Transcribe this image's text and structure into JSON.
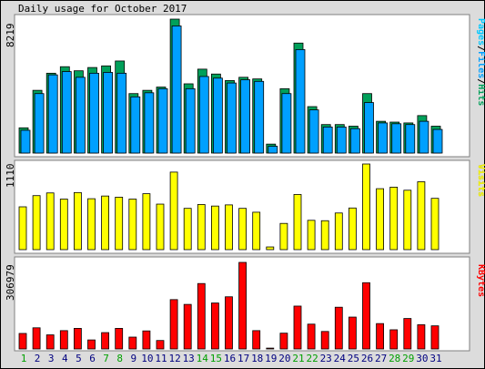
{
  "title": "Daily usage for October 2017",
  "colors": {
    "hits": "#00a05a",
    "files": "#00a0ff",
    "pages": "#00c8ff",
    "visits": "#ffff00",
    "kbytes": "#ff0000",
    "weekend_day_label": "#00a000",
    "weekday_label": "#000080",
    "panel_bg": "#ffffff",
    "border_dark": "#808080"
  },
  "chart_data": [
    {
      "type": "bar",
      "panel": "hits-files-pages",
      "ymax_label": "8219",
      "ylim": [
        0,
        8219
      ],
      "legend": {
        "pages": "Pages",
        "sep1": "/",
        "files": "Files",
        "sep2": "/",
        "hits": "Hits"
      },
      "categories": [
        "1",
        "2",
        "3",
        "4",
        "5",
        "6",
        "7",
        "8",
        "9",
        "10",
        "11",
        "12",
        "13",
        "14",
        "15",
        "16",
        "17",
        "18",
        "19",
        "20",
        "21",
        "22",
        "23",
        "24",
        "25",
        "26",
        "27",
        "28",
        "29",
        "30",
        "31"
      ],
      "weekend": [
        true,
        false,
        false,
        false,
        false,
        false,
        true,
        true,
        false,
        false,
        false,
        false,
        false,
        true,
        true,
        false,
        false,
        false,
        false,
        false,
        true,
        true,
        false,
        false,
        false,
        false,
        false,
        true,
        true,
        false,
        false
      ],
      "series": [
        {
          "name": "Hits",
          "values": [
            1550,
            3850,
            4900,
            5300,
            5050,
            5250,
            5350,
            5650,
            3650,
            3850,
            4050,
            8219,
            4250,
            5150,
            4850,
            4450,
            4650,
            4550,
            550,
            3950,
            6750,
            2850,
            1750,
            1750,
            1650,
            3650,
            1950,
            1900,
            1850,
            2300,
            1650
          ]
        },
        {
          "name": "Files",
          "values": [
            1400,
            3650,
            4800,
            5000,
            4650,
            4900,
            4950,
            4900,
            3450,
            3700,
            3950,
            7800,
            3950,
            4700,
            4600,
            4300,
            4500,
            4400,
            420,
            3650,
            6350,
            2650,
            1600,
            1600,
            1500,
            3100,
            1850,
            1800,
            1750,
            1950,
            1450
          ]
        },
        {
          "name": "Pages",
          "values": [
            1400,
            3650,
            4800,
            5000,
            4650,
            4900,
            4950,
            4900,
            3450,
            3700,
            3950,
            7800,
            3950,
            4700,
            4600,
            4300,
            4500,
            4400,
            420,
            3650,
            6350,
            2650,
            1600,
            1600,
            1500,
            3100,
            1850,
            1800,
            1750,
            1950,
            1450
          ]
        }
      ]
    },
    {
      "type": "bar",
      "panel": "visits",
      "ymax_label": "1110",
      "ylim": [
        0,
        1110
      ],
      "legend": {
        "visits": "Visits"
      },
      "categories": [
        "1",
        "2",
        "3",
        "4",
        "5",
        "6",
        "7",
        "8",
        "9",
        "10",
        "11",
        "12",
        "13",
        "14",
        "15",
        "16",
        "17",
        "18",
        "19",
        "20",
        "21",
        "22",
        "23",
        "24",
        "25",
        "26",
        "27",
        "28",
        "29",
        "30",
        "31"
      ],
      "series": [
        {
          "name": "Visits",
          "values": [
            555,
            700,
            735,
            655,
            740,
            660,
            695,
            680,
            655,
            725,
            590,
            1005,
            535,
            585,
            565,
            580,
            535,
            485,
            35,
            340,
            715,
            380,
            375,
            475,
            540,
            1110,
            790,
            810,
            770,
            880,
            665
          ]
        }
      ]
    },
    {
      "type": "bar",
      "panel": "kbytes",
      "ymax_label": "306979",
      "ylim": [
        0,
        306979
      ],
      "legend": {
        "kbytes": "KBytes"
      },
      "categories": [
        "1",
        "2",
        "3",
        "4",
        "5",
        "6",
        "7",
        "8",
        "9",
        "10",
        "11",
        "12",
        "13",
        "14",
        "15",
        "16",
        "17",
        "18",
        "19",
        "20",
        "21",
        "22",
        "23",
        "24",
        "25",
        "26",
        "27",
        "28",
        "29",
        "30",
        "31"
      ],
      "series": [
        {
          "name": "KBytes",
          "values": [
            55000,
            75000,
            50000,
            65000,
            73000,
            32000,
            58000,
            73000,
            42000,
            64000,
            30000,
            175000,
            158000,
            232000,
            163000,
            185000,
            306979,
            65000,
            3000,
            56000,
            152000,
            88000,
            62000,
            148000,
            113000,
            235000,
            90000,
            68000,
            108000,
            86000,
            82000
          ]
        }
      ]
    }
  ]
}
